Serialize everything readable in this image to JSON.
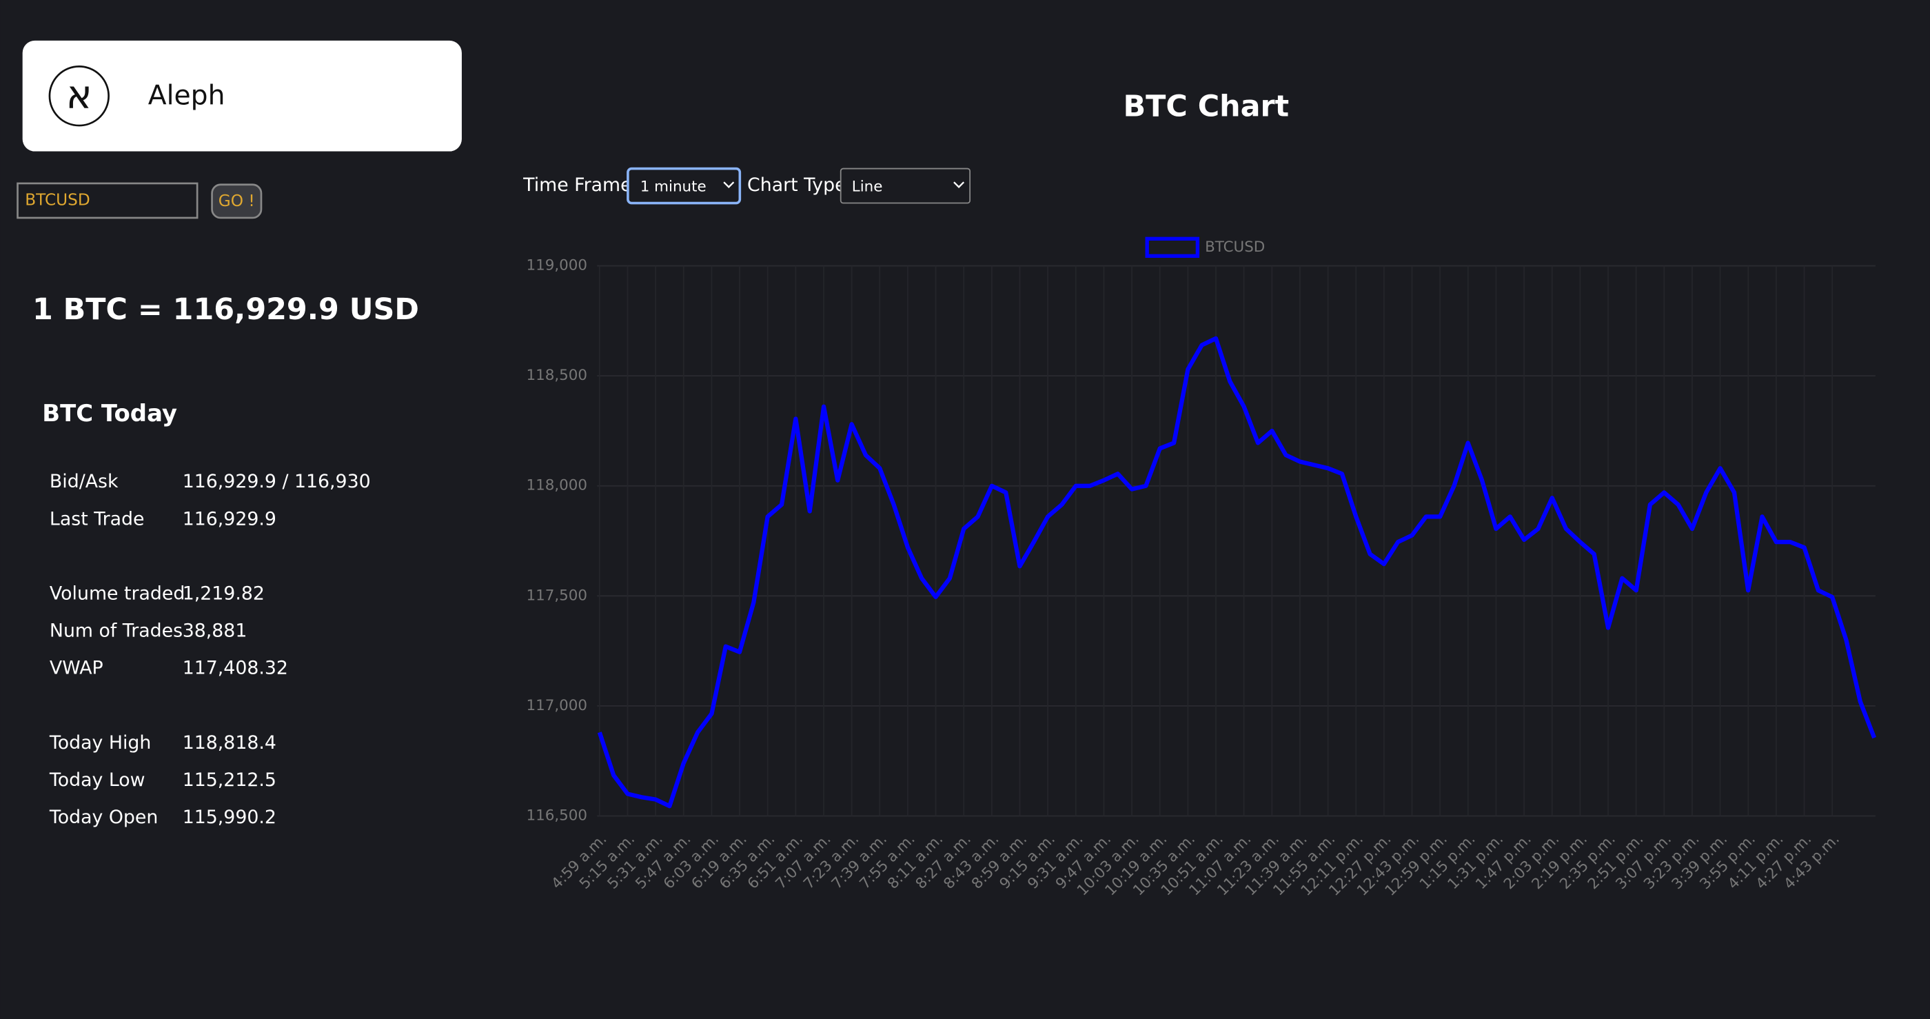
{
  "header": {
    "logo": "א",
    "brand": "Aleph"
  },
  "search": {
    "value": "BTCUSD",
    "button": "GO !"
  },
  "price": "1 BTC = 116,929.9 USD",
  "today": {
    "title": "BTC Today",
    "groups": [
      [
        [
          "Bid/Ask",
          "116,929.9 / 116,930"
        ],
        [
          "Last Trade",
          "116,929.9"
        ]
      ],
      [
        [
          "Volume traded",
          "1,219.82"
        ],
        [
          "Num of Trades",
          "38,881"
        ],
        [
          "VWAP",
          "117,408.32"
        ]
      ],
      [
        [
          "Today High",
          "118,818.4"
        ],
        [
          "Today Low",
          "115,212.5"
        ],
        [
          "Today Open",
          "115,990.2"
        ]
      ]
    ]
  },
  "controls": {
    "time_frame_label": "Time Frame",
    "time_frame": "1 minute",
    "chart_type_label": "Chart Type",
    "chart_type": "Line"
  },
  "chart_data": {
    "type": "line",
    "title": "BTC Chart",
    "categories": [
      "4:59 a.m.",
      null,
      "5:15 a.m.",
      null,
      "5:31 a.m.",
      null,
      "5:47 a.m.",
      null,
      "6:03 a.m.",
      null,
      "6:19 a.m.",
      null,
      "6:35 a.m.",
      null,
      "6:51 a.m.",
      null,
      "7:07 a.m.",
      null,
      "7:23 a.m.",
      null,
      "7:39 a.m.",
      null,
      "7:55 a.m.",
      null,
      "8:11 a.m.",
      null,
      "8:27 a.m.",
      null,
      "8:43 a.m.",
      null,
      "8:59 a.m.",
      null,
      "9:15 a.m.",
      null,
      "9:31 a.m.",
      null,
      "9:47 a.m.",
      null,
      "10:03 a.m.",
      null,
      "10:19 a.m.",
      null,
      "10:35 a.m.",
      null,
      "10:51 a.m.",
      null,
      "11:07 a.m.",
      null,
      "11:23 a.m.",
      null,
      "11:39 a.m.",
      null,
      "11:55 a.m.",
      null,
      "12:11 p.m.",
      null,
      "12:27 p.m.",
      null,
      "12:43 p.m.",
      null,
      "12:59 p.m.",
      null,
      "1:15 p.m.",
      null,
      "1:31 p.m.",
      null,
      "1:47 p.m.",
      null,
      "2:03 p.m.",
      null,
      "2:19 p.m.",
      null,
      "2:35 p.m.",
      null,
      "2:51 p.m.",
      null,
      "3:07 p.m.",
      null,
      "3:23 p.m.",
      null,
      "3:39 p.m.",
      null,
      "3:55 p.m.",
      null,
      "4:11 p.m.",
      null,
      "4:27 p.m.",
      null,
      "4:43 p.m.",
      null,
      null,
      null
    ],
    "series": [
      {
        "name": "BTCUSD",
        "color": "#0000ff",
        "values": [
          116880,
          116685,
          116600,
          116585,
          116575,
          116545,
          116740,
          116880,
          116965,
          117270,
          117245,
          117470,
          117860,
          117915,
          118305,
          117885,
          118360,
          118025,
          118280,
          118140,
          118080,
          117915,
          117720,
          117580,
          117495,
          117580,
          117805,
          117860,
          118000,
          117970,
          117635,
          117745,
          117860,
          117915,
          118000,
          118000,
          118025,
          118055,
          117985,
          118000,
          118170,
          118195,
          118530,
          118640,
          118670,
          118475,
          118360,
          118195,
          118250,
          118140,
          118110,
          118095,
          118080,
          118055,
          117860,
          117690,
          117645,
          117745,
          117775,
          117860,
          117860,
          118000,
          118195,
          118025,
          117805,
          117860,
          117755,
          117805,
          117945,
          117805,
          117745,
          117690,
          117355,
          117580,
          117525,
          117915,
          117970,
          117915,
          117805,
          117970,
          118080,
          117970,
          117525,
          117860,
          117745,
          117745,
          117720,
          117525,
          117495,
          117300,
          117020,
          116855
        ]
      }
    ],
    "ylim": [
      116500,
      119000
    ],
    "yticks": [
      {
        "value": 116500,
        "label": "116,500"
      },
      {
        "value": 117000,
        "label": "117,000"
      },
      {
        "value": 117500,
        "label": "117,500"
      },
      {
        "value": 118000,
        "label": "118,000"
      },
      {
        "value": 118500,
        "label": "118,500"
      },
      {
        "value": 119000,
        "label": "119,000"
      }
    ],
    "grid": true,
    "legend": "top"
  }
}
